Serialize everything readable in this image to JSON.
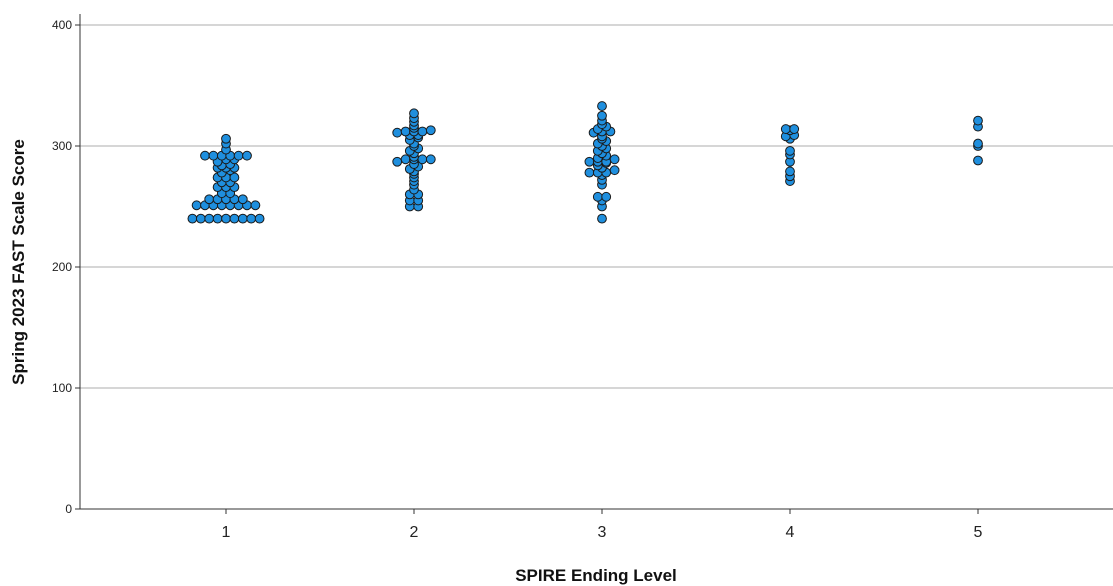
{
  "chart_data": {
    "type": "scatter",
    "subtype": "dot-plot",
    "xlabel": "SPIRE Ending Level",
    "ylabel": "Spring 2023 FAST Scale Score",
    "categories": [
      "1",
      "2",
      "3",
      "4",
      "5"
    ],
    "ylim": [
      0,
      400
    ],
    "yticks": [
      0,
      100,
      200,
      300,
      400
    ],
    "grid": true,
    "marker_color": "#1f8fde",
    "marker_edge_color": "#1a1a1a",
    "points_by_level": {
      "1": [
        240,
        240,
        240,
        240,
        240,
        240,
        240,
        240,
        240,
        251,
        251,
        251,
        251,
        251,
        251,
        251,
        251,
        256,
        256,
        256,
        256,
        256,
        261,
        261,
        266,
        266,
        266,
        270,
        270,
        274,
        274,
        274,
        278,
        280,
        282,
        282,
        282,
        284,
        285,
        287,
        289,
        289,
        292,
        292,
        292,
        292,
        292,
        292,
        297,
        302,
        306
      ],
      "2": [
        250,
        250,
        255,
        255,
        260,
        260,
        264,
        268,
        271,
        274,
        277,
        279,
        281,
        283,
        285,
        287,
        289,
        289,
        289,
        289,
        291,
        294,
        296,
        298,
        300,
        302,
        305,
        307,
        309,
        309,
        311,
        312,
        312,
        312,
        313,
        315,
        317,
        320,
        323,
        327
      ],
      "3": [
        240,
        250,
        255,
        258,
        258,
        268,
        272,
        276,
        278,
        278,
        278,
        280,
        282,
        284,
        286,
        287,
        287,
        287,
        289,
        290,
        292,
        294,
        296,
        298,
        300,
        302,
        304,
        306,
        308,
        311,
        312,
        312,
        314,
        316,
        318,
        321,
        325,
        333
      ],
      "4": [
        271,
        275,
        279,
        287,
        293,
        296,
        306,
        308,
        309,
        313,
        314,
        314
      ],
      "5": [
        288,
        300,
        302,
        316,
        321
      ]
    }
  }
}
